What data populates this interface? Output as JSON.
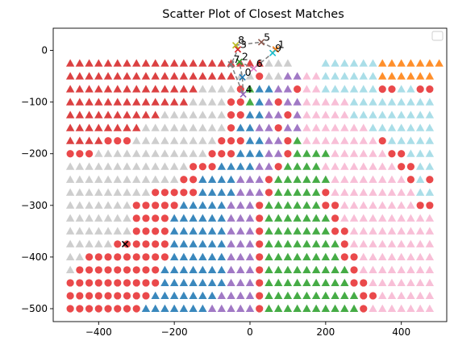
{
  "chart_data": {
    "type": "scatter",
    "title": "Scatter Plot of Closest Matches",
    "xlim": [
      -520,
      520
    ],
    "ylim": [
      -525,
      43
    ],
    "x_ticks": [
      -400,
      -200,
      0,
      200,
      400
    ],
    "y_ticks": [
      0,
      -100,
      -200,
      -300,
      -400,
      -500
    ],
    "grid": false,
    "legend": {
      "placement": "top-right",
      "entries": []
    },
    "grid_points": {
      "x_start": -475,
      "x_step": 25,
      "count_x": 39,
      "y_start": -25,
      "y_step": -25,
      "count_y": 20,
      "rows": [
        "TTTTTTTTTTTTTTTTTTTTTSSS...CCCCCCOOOOOOO",
        "TTTTTTTTTTTTTTTTTTGGFSSPPPPCCCCCCOOOOOO",
        "TTTTTTTTTTTTTTGGGGFRBBPPFPPCCCCCCFFCCFF",
        "TTTTTTTTTTTTTGGGGFFRBPFPPPPPPPCCCCCCCCC",
        "TTTTTTTTTTGGGGGGGFFBBPPFPPPPPPCCCCCCCCC",
        "TTTTTTTTGGGGGGGGGFBBPPFPPPPPPPPPCCCCCCC",
        "TTTTFFFGGGGGGGGGFFFBBPPFGPPPPPPPPFCCCCC",
        "FFFGGGGGGGGGGGGFFFBBBPPFGGGGPPPPPPFFCCC",
        "GGGGGGGGGGGGGFFFBBBBPPFGGGGPPPPPPPPFFCC",
        "GGGGGGGGGGGGFFBBBBPPPFGGGGGGPPPPPPPPFCF",
        "GGGGGGGGGFFFFFBBBBPPPFGGGGGFPPPPPPPPPCC",
        "GGGGGGGFFFFFBBBBBPPPFGGGGGGFFPPPPPPPPFF",
        "GGGGGGGFFFFBBBBBBPPPFGGGGGGGFPPPPPPPPPP",
        "GGGGGGGFFFFBBBBBBPPPFGGGGGGGFFPPPPPPPPP",
        "GGGGGFFFFFFBBBBBBPPPFGGGGGGGGFPPPPPPPPP",
        "GGFFFFFFFFFBBBBBBPPPFGGGGGGGGFFPPPPPPPP",
        "GFFFFFFFFFBBBBBBBPPPFGGGGGGGGGFPPPPPPPP",
        "FFFFFFFFFFBBBBBBBPPPFGGGGGGGGGFFPPPPPPP",
        "FFFFFFFFFBBBBBBBPPPPFGGGGGGGGGGFFPPPPPP",
        "FFFFFFFFBBBBBBBPPPPPFGGGGGGGGGGFPPPPPPP"
      ]
    },
    "classes": {
      "T": {
        "marker": "triangle",
        "color": "#d62728"
      },
      "G": {
        "marker": "triangle",
        "color": "#c7c7c7"
      },
      "F": {
        "marker": "circle",
        "color": "#e8393c"
      },
      "B": {
        "marker": "triangle",
        "color": "#1f77b4"
      },
      "P": {
        "marker": "triangle",
        "color": "#9467bd"
      },
      "R": {
        "marker": "triangle",
        "color": "#2ca02c"
      },
      "C": {
        "marker": "triangle",
        "color": "#9edae5"
      },
      "O": {
        "marker": "triangle",
        "color": "#ff7f0e"
      },
      "S": {
        "marker": "triangle",
        "color": "#c7c7c7"
      }
    },
    "color_overrides": {
      "green_columns_from": 21,
      "pink_color": "#f7b6d2",
      "green_color": "#2ca02c"
    },
    "path": {
      "color": "#7f7f7f",
      "points": [
        {
          "label": "0",
          "x": -20,
          "y": -52
        },
        {
          "label": "1",
          "x": 68,
          "y": 2
        },
        {
          "label": "2",
          "x": -28,
          "y": -22
        },
        {
          "label": "3",
          "x": -32,
          "y": 2
        },
        {
          "label": "4",
          "x": -18,
          "y": -85
        },
        {
          "label": "5",
          "x": 30,
          "y": 16
        },
        {
          "label": "6",
          "x": 10,
          "y": -35
        },
        {
          "label": "7",
          "x": -50,
          "y": -27
        },
        {
          "label": "8",
          "x": -38,
          "y": 10
        },
        {
          "label": "9",
          "x": 60,
          "y": -5
        }
      ],
      "order": [
        8,
        5,
        1,
        9,
        6,
        2,
        0,
        4,
        7,
        3,
        8
      ]
    },
    "path_markers": [
      {
        "x": -20,
        "y": -52,
        "symbol": "x",
        "color": "#1f77b4"
      },
      {
        "x": 68,
        "y": 2,
        "symbol": "x",
        "color": "#ff7f0e"
      },
      {
        "x": -28,
        "y": -22,
        "symbol": "x",
        "color": "#2ca02c"
      },
      {
        "x": -32,
        "y": 2,
        "symbol": "x",
        "color": "#d62728"
      },
      {
        "x": -18,
        "y": -85,
        "symbol": "x",
        "color": "#9467bd"
      },
      {
        "x": 30,
        "y": 16,
        "symbol": "x",
        "color": "#8c564b"
      },
      {
        "x": 10,
        "y": -35,
        "symbol": "x",
        "color": "#e377c2"
      },
      {
        "x": -50,
        "y": -27,
        "symbol": "x",
        "color": "#7f7f7f"
      },
      {
        "x": -38,
        "y": 10,
        "symbol": "x",
        "color": "#bcbd22"
      },
      {
        "x": 60,
        "y": -5,
        "symbol": "x",
        "color": "#17becf"
      }
    ],
    "query_marker": {
      "x": -330,
      "y": -375,
      "symbol": "x",
      "color": "#000000"
    }
  }
}
